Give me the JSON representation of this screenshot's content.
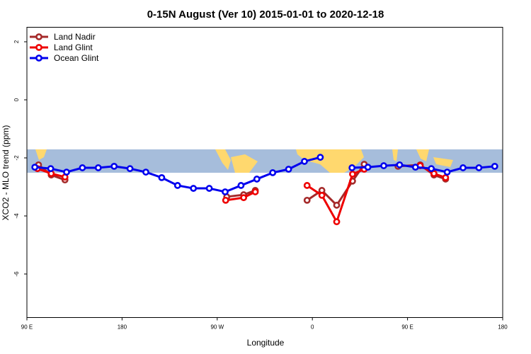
{
  "chart_data": {
    "type": "line",
    "title": "0-15N August (Ver 10)   2015-01-01 to 2020-12-18",
    "x_label": "Longitude",
    "y_label": "XCO2 - MLO trend (ppm)",
    "xlim": [
      90,
      540
    ],
    "ylim": [
      -7.5,
      2.5
    ],
    "xticks": [
      {
        "value": 90,
        "label": "90 E"
      },
      180,
      {
        "value": 270,
        "label": "90 W"
      },
      {
        "value": 360,
        "label": "0"
      },
      {
        "value": 450,
        "label": "90 E"
      },
      {
        "value": 540,
        "label": "180"
      }
    ],
    "yticks": [
      -6,
      -4,
      -2,
      0,
      2
    ],
    "legend": "top-left",
    "series": [
      {
        "name": "Land Nadir",
        "color": "#a52a2a",
        "x": [
          101,
          113,
          126,
          200,
          279,
          295,
          306,
          330,
          355,
          369,
          383,
          398,
          409,
          425,
          441,
          462,
          475,
          486
        ],
        "values": [
          -2.24,
          -2.59,
          -2.76,
          null,
          -3.34,
          -3.27,
          -3.12,
          null,
          -3.46,
          -3.12,
          -3.63,
          -2.8,
          -2.22,
          null,
          -2.29,
          -2.24,
          -2.59,
          -2.73
        ]
      },
      {
        "name": "Land Glint",
        "color": "#ee0000",
        "x": [
          100,
          113,
          126,
          200,
          278,
          295,
          306,
          330,
          355,
          369,
          383,
          398,
          409,
          435,
          462,
          475,
          486
        ],
        "values": [
          -2.37,
          -2.54,
          -2.66,
          null,
          -3.46,
          -3.37,
          -3.17,
          null,
          -2.95,
          -3.29,
          -4.2,
          -2.56,
          -2.39,
          null,
          -2.27,
          -2.54,
          -2.68
        ]
      },
      {
        "name": "Ocean Glint",
        "color": "#0000ee",
        "x": [
          97.5,
          112.5,
          127.5,
          142.5,
          157.5,
          172.5,
          187.5,
          202.5,
          217.5,
          232.5,
          247.5,
          262.5,
          277.5,
          292.5,
          307.5,
          322.5,
          337.5,
          352.5,
          367.5,
          382.5,
          397.5,
          412.5,
          427.5,
          442.5,
          457.5,
          472.5,
          487.5,
          502.5,
          517.5,
          532.5
        ],
        "values": [
          -2.32,
          -2.37,
          -2.49,
          -2.34,
          -2.34,
          -2.29,
          -2.37,
          -2.49,
          -2.68,
          -2.95,
          -3.05,
          -3.05,
          -3.17,
          -2.95,
          -2.73,
          -2.51,
          -2.39,
          -2.12,
          -1.98,
          null,
          -2.34,
          -2.32,
          -2.27,
          -2.24,
          -2.32,
          -2.37,
          -2.49,
          -2.34,
          -2.34,
          -2.29
        ]
      }
    ]
  }
}
